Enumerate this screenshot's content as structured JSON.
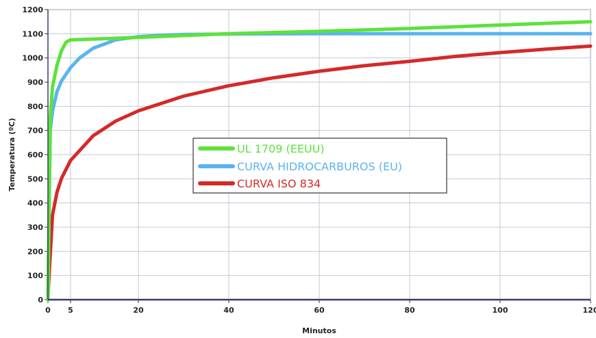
{
  "chart_data": {
    "type": "line",
    "xlabel": "Minutos",
    "ylabel": "Temperatura (ºC)",
    "xlim": [
      0,
      120
    ],
    "ylim": [
      0,
      1200
    ],
    "x_ticks": [
      0,
      5,
      20,
      40,
      60,
      80,
      100,
      120
    ],
    "y_ticks": [
      0,
      100,
      200,
      300,
      400,
      500,
      600,
      700,
      800,
      900,
      1000,
      1100,
      1200
    ],
    "grid": true,
    "legend_position": "center",
    "series": [
      {
        "name": "UL 1709 (EEUU)",
        "color": "#5de23a",
        "x": [
          0,
          0.5,
          1,
          2,
          3,
          4,
          5,
          10,
          20,
          40,
          60,
          80,
          100,
          120
        ],
        "y": [
          0,
          750,
          880,
          970,
          1030,
          1065,
          1075,
          1078,
          1085,
          1100,
          1110,
          1122,
          1136,
          1150
        ]
      },
      {
        "name": "CURVA HIDROCARBUROS (EU)",
        "color": "#5ab4ee",
        "x": [
          0,
          0.5,
          1,
          2,
          3,
          5,
          7,
          10,
          15,
          20,
          25,
          30,
          40,
          60,
          80,
          100,
          120
        ],
        "y": [
          0,
          700,
          780,
          860,
          905,
          960,
          1000,
          1040,
          1075,
          1088,
          1094,
          1097,
          1099,
          1100,
          1100,
          1100,
          1100
        ]
      },
      {
        "name": "CURVA ISO 834",
        "color": "#d42a2a",
        "x": [
          0,
          1,
          2,
          3,
          5,
          10,
          15,
          20,
          30,
          40,
          50,
          60,
          70,
          80,
          90,
          100,
          110,
          120
        ],
        "y": [
          20,
          349,
          445,
          502,
          576,
          678,
          739,
          781,
          842,
          885,
          918,
          945,
          968,
          986,
          1006,
          1022,
          1036,
          1049
        ]
      }
    ]
  }
}
